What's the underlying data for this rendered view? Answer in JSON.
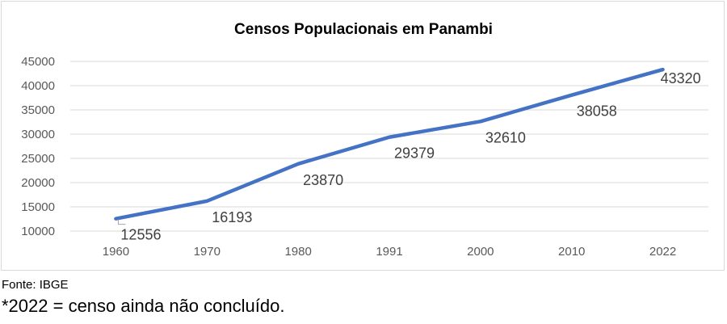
{
  "chart_data": {
    "type": "line",
    "title": "Censos Populacionais em Panambi",
    "categories": [
      "1960",
      "1970",
      "1980",
      "1991",
      "2000",
      "2010",
      "2022"
    ],
    "series": [
      {
        "values": [
          12556,
          16193,
          23870,
          29379,
          32610,
          38058,
          43320
        ],
        "color": "#4472c4"
      }
    ],
    "ylim": [
      10000,
      45000
    ],
    "yticks": [
      "10000",
      "15000",
      "20000",
      "25000",
      "30000",
      "35000",
      "40000",
      "45000"
    ],
    "grid": true,
    "data_labels": [
      "12556",
      "16193",
      "23870",
      "29379",
      "32610",
      "38058",
      "43320"
    ]
  },
  "source": "Fonte: IBGE",
  "note": "*2022 = censo ainda não concluído."
}
